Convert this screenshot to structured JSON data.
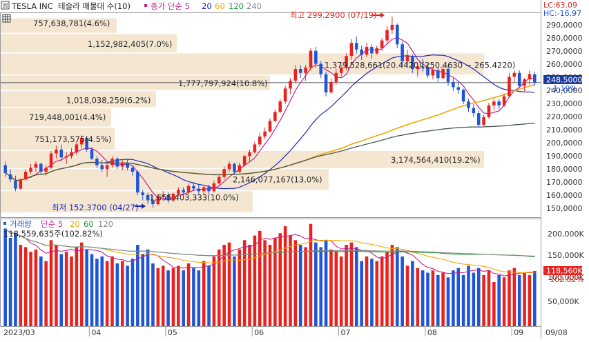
{
  "header": {
    "icon_label": "☒",
    "stock_name": "TESLA INC",
    "chart_title": "테슬라 매물대 수(10)",
    "ma_title": "종가 단순 5",
    "ma_periods": [
      "20",
      "60",
      "120",
      "240"
    ],
    "lc": "LC:63.09",
    "hc": "HC:-16.97"
  },
  "colors": {
    "up": "#e8231f",
    "down": "#1f55d8",
    "ma5": "#c4208c",
    "ma20": "#1a2ab8",
    "ma60": "#f0a800",
    "ma120": "#1e9a2c",
    "ma240": "#555555",
    "volume_profile": "#f5e6d2",
    "price_tag": "#1a3a9c"
  },
  "price_panel": {
    "y_axis_labels": [
      "290,0000",
      "280,0000",
      "270,0000",
      "260,0000",
      "250,0000",
      "240,0000",
      "230,0000",
      "220,0000",
      "210,0000",
      "200,0000",
      "190,0000",
      "180,0000",
      "170,0000",
      "160,0000",
      "150,0000"
    ],
    "current_price": "248.5000",
    "change_pct": "-1.19%",
    "high_label": "최고 299.2900 (07/19)",
    "low_label": "최저 152.3700 (04/27)",
    "volume_profile": [
      {
        "label": "757,638,781(4.6%)"
      },
      {
        "label": "1,152,982,405(7.0%)"
      },
      {
        "label": "1,379,528,661(20.4420)(250.4630 ~ 265.4220)"
      },
      {
        "label": "1,777,797,924(10.8%)"
      },
      {
        "label": "1,018,038,259(6.2%)"
      },
      {
        "label": "719,448,001(4.4%)"
      },
      {
        "label": "751,173,575(4.5%)"
      },
      {
        "label": "3,174,564,410(19.2%)"
      },
      {
        "label": "2,146,077,167(13.0%)"
      },
      {
        "label": "1,655,403,333(10.0%)"
      }
    ]
  },
  "volume_panel": {
    "title": "거래량",
    "ma_title": "단순 5",
    "ma_periods": [
      "20",
      "60",
      "120"
    ],
    "last_volume_label": "118,559,635주(102.82%)",
    "y_axis_labels": [
      "200,000K",
      "150,000K",
      "100,000K",
      "50,000K"
    ],
    "last_value_tag": "118,560K",
    "last_pct_tag": "102.82%"
  },
  "x_axis": {
    "month_labels": [
      "2023/03",
      "04",
      "05",
      "06",
      "07",
      "08",
      "09"
    ],
    "right_label": "09/08"
  },
  "chart_data": {
    "type": "candlestick",
    "title": "테슬라 매물대 수(10)",
    "ylim": [
      145,
      302
    ],
    "volume_ylim": [
      0,
      230000
    ],
    "candles": [
      [
        185.0,
        188.0,
        176.0,
        179.0
      ],
      [
        178.0,
        182.0,
        172.0,
        174.0
      ],
      [
        173.0,
        177.0,
        165.0,
        167.0
      ],
      [
        167.0,
        175.0,
        166.0,
        174.0
      ],
      [
        174.0,
        182.0,
        173.0,
        180.0
      ],
      [
        180.0,
        186.0,
        178.0,
        183.0
      ],
      [
        183.0,
        188.0,
        180.0,
        186.0
      ],
      [
        186.0,
        187.0,
        178.0,
        180.0
      ],
      [
        180.0,
        185.0,
        177.0,
        183.0
      ],
      [
        183.0,
        196.0,
        182.0,
        194.0
      ],
      [
        194.0,
        200.0,
        190.0,
        197.0
      ],
      [
        197.0,
        201.0,
        188.0,
        191.0
      ],
      [
        191.0,
        195.0,
        186.0,
        192.0
      ],
      [
        192.0,
        198.0,
        190.0,
        195.0
      ],
      [
        195.0,
        203.0,
        193.0,
        201.0
      ],
      [
        201.0,
        208.0,
        198.0,
        206.0
      ],
      [
        206.0,
        207.0,
        195.0,
        197.0
      ],
      [
        197.0,
        199.0,
        189.0,
        190.0
      ],
      [
        190.0,
        192.0,
        183.0,
        185.0
      ],
      [
        185.0,
        189.0,
        180.0,
        182.0
      ],
      [
        182.0,
        186.0,
        176.0,
        185.0
      ],
      [
        185.0,
        192.0,
        183.0,
        190.0
      ],
      [
        190.0,
        191.0,
        182.0,
        184.0
      ],
      [
        184.0,
        189.0,
        181.0,
        187.0
      ],
      [
        187.0,
        189.0,
        181.0,
        183.0
      ],
      [
        183.0,
        185.0,
        177.0,
        180.0
      ],
      [
        180.0,
        181.0,
        162.0,
        164.0
      ],
      [
        164.0,
        166.0,
        158.0,
        162.0
      ],
      [
        162.0,
        164.0,
        155.0,
        158.0
      ],
      [
        158.0,
        162.0,
        152.37,
        155.0
      ],
      [
        155.0,
        163.0,
        154.0,
        161.0
      ],
      [
        161.0,
        165.0,
        159.0,
        162.0
      ],
      [
        162.0,
        164.0,
        156.0,
        158.0
      ],
      [
        158.0,
        164.0,
        157.0,
        163.0
      ],
      [
        163.0,
        168.0,
        161.0,
        166.0
      ],
      [
        166.0,
        168.0,
        162.0,
        164.0
      ],
      [
        164.0,
        171.0,
        163.0,
        169.0
      ],
      [
        169.0,
        172.0,
        165.0,
        167.0
      ],
      [
        167.0,
        170.0,
        162.0,
        165.0
      ],
      [
        165.0,
        169.0,
        162.0,
        168.0
      ],
      [
        168.0,
        170.0,
        163.0,
        165.0
      ],
      [
        165.0,
        173.0,
        164.0,
        171.0
      ],
      [
        171.0,
        178.0,
        170.0,
        176.0
      ],
      [
        176.0,
        184.0,
        174.0,
        182.0
      ],
      [
        182.0,
        188.0,
        180.0,
        186.0
      ],
      [
        186.0,
        187.0,
        178.0,
        180.0
      ],
      [
        180.0,
        187.0,
        179.0,
        185.0
      ],
      [
        185.0,
        193.0,
        184.0,
        192.0
      ],
      [
        192.0,
        197.0,
        188.0,
        195.0
      ],
      [
        195.0,
        203.0,
        194.0,
        201.0
      ],
      [
        201.0,
        210.0,
        199.0,
        207.0
      ],
      [
        207.0,
        214.0,
        205.0,
        211.0
      ],
      [
        211.0,
        221.0,
        210.0,
        219.0
      ],
      [
        219.0,
        228.0,
        218.0,
        226.0
      ],
      [
        226.0,
        236.0,
        225.0,
        234.0
      ],
      [
        234.0,
        246.0,
        232.0,
        244.0
      ],
      [
        244.0,
        252.0,
        240.0,
        250.0
      ],
      [
        250.0,
        262.0,
        248.0,
        259.0
      ],
      [
        259.0,
        262.0,
        252.0,
        256.0
      ],
      [
        256.0,
        262.0,
        250.0,
        260.0
      ],
      [
        260.0,
        275.0,
        258.0,
        273.0
      ],
      [
        273.0,
        276.0,
        260.0,
        263.0
      ],
      [
        263.0,
        265.0,
        252.0,
        255.0
      ],
      [
        255.0,
        257.0,
        238.0,
        241.0
      ],
      [
        241.0,
        252.0,
        240.0,
        249.0
      ],
      [
        249.0,
        259.0,
        247.0,
        256.0
      ],
      [
        256.0,
        262.0,
        253.0,
        260.0
      ],
      [
        260.0,
        271.0,
        258.0,
        269.0
      ],
      [
        269.0,
        282.0,
        266.0,
        279.0
      ],
      [
        279.0,
        284.0,
        271.0,
        274.0
      ],
      [
        274.0,
        277.0,
        266.0,
        270.0
      ],
      [
        270.0,
        279.0,
        268.0,
        276.0
      ],
      [
        276.0,
        278.0,
        267.0,
        271.0
      ],
      [
        271.0,
        277.0,
        270.0,
        275.0
      ],
      [
        275.0,
        283.0,
        273.0,
        281.0
      ],
      [
        281.0,
        292.0,
        279.0,
        289.0
      ],
      [
        289.0,
        299.29,
        286.0,
        293.0
      ],
      [
        293.0,
        294.0,
        275.0,
        278.0
      ],
      [
        278.0,
        280.0,
        262.0,
        265.0
      ],
      [
        265.0,
        274.0,
        262.0,
        269.0
      ],
      [
        269.0,
        270.0,
        256.0,
        259.0
      ],
      [
        259.0,
        264.0,
        253.0,
        261.0
      ],
      [
        261.0,
        267.0,
        257.0,
        260.0
      ],
      [
        260.0,
        263.0,
        252.0,
        254.0
      ],
      [
        254.0,
        260.0,
        251.0,
        258.0
      ],
      [
        258.0,
        260.0,
        249.0,
        252.0
      ],
      [
        252.0,
        262.0,
        251.0,
        259.0
      ],
      [
        259.0,
        261.0,
        246.0,
        249.0
      ],
      [
        249.0,
        252.0,
        242.0,
        245.0
      ],
      [
        245.0,
        250.0,
        240.0,
        243.0
      ],
      [
        243.0,
        244.0,
        232.0,
        234.0
      ],
      [
        234.0,
        236.0,
        226.0,
        229.0
      ],
      [
        229.0,
        232.0,
        222.0,
        225.0
      ],
      [
        225.0,
        227.0,
        214.0,
        216.0
      ],
      [
        216.0,
        224.0,
        215.0,
        222.0
      ],
      [
        222.0,
        233.0,
        221.0,
        231.0
      ],
      [
        231.0,
        236.0,
        227.0,
        234.0
      ],
      [
        234.0,
        236.0,
        228.0,
        231.0
      ],
      [
        231.0,
        240.0,
        230.0,
        238.0
      ],
      [
        238.0,
        256.0,
        237.0,
        253.0
      ],
      [
        253.0,
        258.0,
        249.0,
        256.0
      ],
      [
        256.0,
        258.0,
        244.0,
        246.0
      ],
      [
        246.0,
        252.0,
        242.0,
        251.0
      ],
      [
        251.0,
        258.0,
        247.0,
        255.0
      ],
      [
        255.0,
        257.0,
        246.0,
        248.5
      ]
    ],
    "volume": [
      210,
      190,
      200,
      175,
      170,
      160,
      165,
      150,
      140,
      185,
      175,
      155,
      160,
      150,
      170,
      180,
      165,
      155,
      145,
      150,
      140,
      150,
      135,
      140,
      130,
      145,
      175,
      155,
      165,
      135,
      125,
      130,
      120,
      125,
      130,
      120,
      135,
      125,
      120,
      140,
      130,
      150,
      165,
      175,
      180,
      150,
      165,
      185,
      175,
      195,
      205,
      185,
      175,
      190,
      200,
      215,
      195,
      185,
      175,
      170,
      220,
      180,
      170,
      185,
      165,
      160,
      150,
      175,
      180,
      170,
      140,
      150,
      145,
      140,
      150,
      160,
      175,
      170,
      150,
      130,
      140,
      125,
      120,
      115,
      120,
      110,
      115,
      105,
      120,
      125,
      110,
      130,
      115,
      125,
      110,
      120,
      95,
      110,
      105,
      120,
      125,
      110,
      115,
      110,
      118.56
    ]
  }
}
